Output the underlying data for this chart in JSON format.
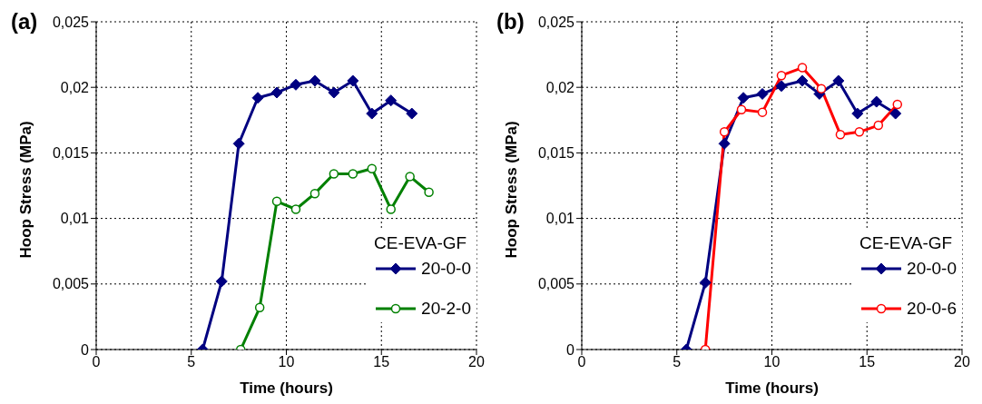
{
  "chart_data": [
    {
      "type": "line",
      "title": "(a)",
      "xlabel": "Time (hours)",
      "ylabel": "Hoop Stress (MPa)",
      "legend_title": "CE-EVA-GF",
      "legend": "bottom right",
      "grid": true,
      "line_style": "solid",
      "xlim": [
        0,
        20
      ],
      "xticks": [
        0,
        5,
        10,
        15,
        20
      ],
      "ylim": [
        0,
        0.025
      ],
      "yticks": [
        0,
        {
          "value": 0.005,
          "label": "0,005"
        },
        {
          "value": 0.01,
          "label": "0,01"
        },
        {
          "value": 0.015,
          "label": "0,015"
        },
        {
          "value": 0.02,
          "label": "0,02"
        },
        {
          "value": 0.025,
          "label": "0,025"
        }
      ],
      "series": [
        {
          "name": "20-0-0",
          "color": "#000080",
          "marker": "diamond",
          "x": [
            5.6,
            6.6,
            7.5,
            8.5,
            9.5,
            10.5,
            11.5,
            12.5,
            13.5,
            14.5,
            15.5,
            16.6
          ],
          "values": [
            0,
            0.0052,
            0.0157,
            0.0192,
            0.0196,
            0.0202,
            0.0205,
            0.0196,
            0.0205,
            0.018,
            0.019,
            0.018
          ]
        },
        {
          "name": "20-2-0",
          "color": "#008000",
          "marker": "circle",
          "x": [
            7.6,
            8.6,
            9.5,
            10.5,
            11.5,
            12.5,
            13.5,
            14.5,
            15.5,
            16.5,
            17.5
          ],
          "values": [
            0,
            0.0032,
            0.0113,
            0.0107,
            0.0119,
            0.0134,
            0.0134,
            0.0138,
            0.0107,
            0.0132,
            0.012
          ]
        }
      ]
    },
    {
      "type": "line",
      "title": "(b)",
      "xlabel": "Time (hours)",
      "ylabel": "Hoop Stress (MPa)",
      "legend_title": "CE-EVA-GF",
      "legend": "bottom right",
      "grid": true,
      "line_style": "solid",
      "xlim": [
        0,
        20
      ],
      "xticks": [
        0,
        5,
        10,
        15,
        20
      ],
      "ylim": [
        0,
        0.025
      ],
      "yticks": [
        0,
        {
          "value": 0.005,
          "label": "0,005"
        },
        {
          "value": 0.01,
          "label": "0,01"
        },
        {
          "value": 0.015,
          "label": "0,015"
        },
        {
          "value": 0.02,
          "label": "0,02"
        },
        {
          "value": 0.025,
          "label": "0,025"
        }
      ],
      "series": [
        {
          "name": "20-0-0",
          "color": "#000080",
          "marker": "diamond",
          "x": [
            5.5,
            6.5,
            7.5,
            8.5,
            9.5,
            10.5,
            11.6,
            12.5,
            13.5,
            14.5,
            15.5,
            16.5
          ],
          "values": [
            0,
            0.0051,
            0.0157,
            0.0192,
            0.0195,
            0.0201,
            0.0205,
            0.0195,
            0.0205,
            0.018,
            0.0189,
            0.018
          ]
        },
        {
          "name": "20-0-6",
          "color": "#ff0000",
          "marker": "circle",
          "x": [
            6.5,
            7.5,
            8.4,
            9.5,
            10.5,
            11.6,
            12.6,
            13.6,
            14.6,
            15.6,
            16.6
          ],
          "values": [
            0,
            0.0166,
            0.0183,
            0.0181,
            0.0209,
            0.0215,
            0.0199,
            0.0164,
            0.0166,
            0.0171,
            0.0187
          ]
        }
      ]
    }
  ]
}
